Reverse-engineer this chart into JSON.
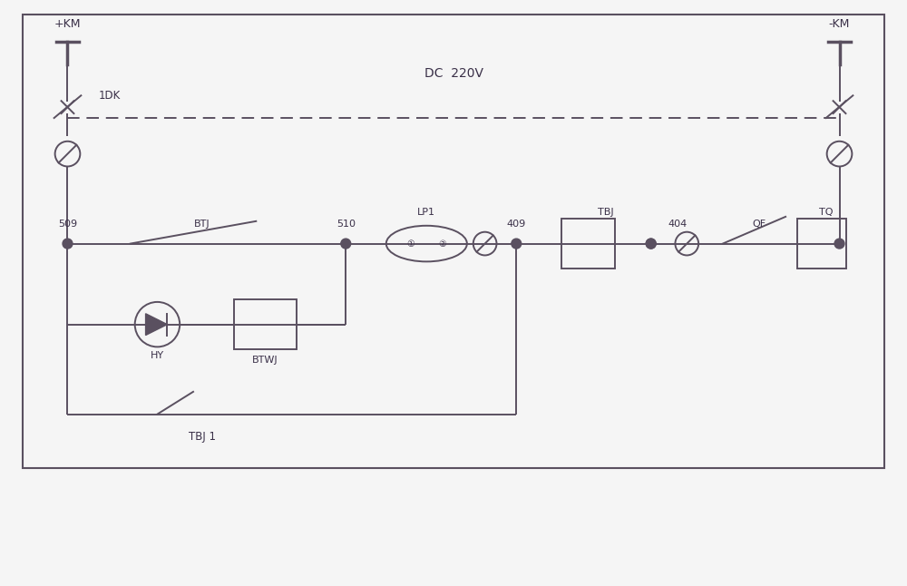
{
  "bg_color": "#f5f5f5",
  "line_color": "#5a5060",
  "text_color": "#3a3048",
  "figsize": [
    10.0,
    6.46
  ],
  "dpi": 100,
  "xlim": [
    0,
    100
  ],
  "ylim": [
    0,
    65
  ]
}
